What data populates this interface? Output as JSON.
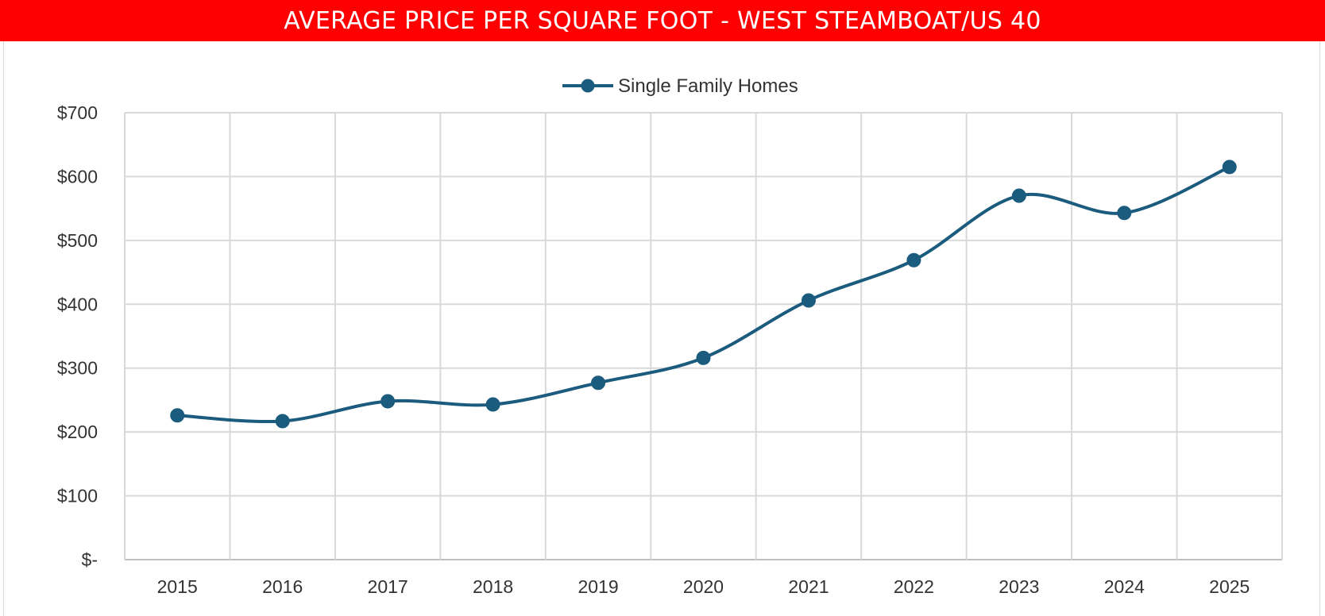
{
  "header": {
    "title": "AVERAGE PRICE PER SQUARE FOOT - WEST STEAMBOAT/US 40"
  },
  "colors": {
    "title_bg": "#ff0000",
    "series": "#1b5b7e",
    "grid": "#d9d9d9"
  },
  "chart_data": {
    "type": "line",
    "title": "AVERAGE PRICE PER SQUARE FOOT - WEST STEAMBOAT/US 40",
    "xlabel": "",
    "ylabel": "",
    "categories": [
      "2015",
      "2016",
      "2017",
      "2018",
      "2019",
      "2020",
      "2021",
      "2022",
      "2023",
      "2024",
      "2025"
    ],
    "series": [
      {
        "name": "Single Family Homes",
        "values": [
          226,
          217,
          248,
          243,
          277,
          316,
          406,
          469,
          570,
          543,
          615
        ]
      }
    ],
    "ylim": [
      0,
      700
    ],
    "yticks": [
      0,
      100,
      200,
      300,
      400,
      500,
      600,
      700
    ],
    "ytick_labels": [
      "$-",
      "$100",
      "$200",
      "$300",
      "$400",
      "$500",
      "$600",
      "$700"
    ],
    "grid": true,
    "legend_position": "top-center",
    "smooth": true,
    "markers": "circle"
  }
}
